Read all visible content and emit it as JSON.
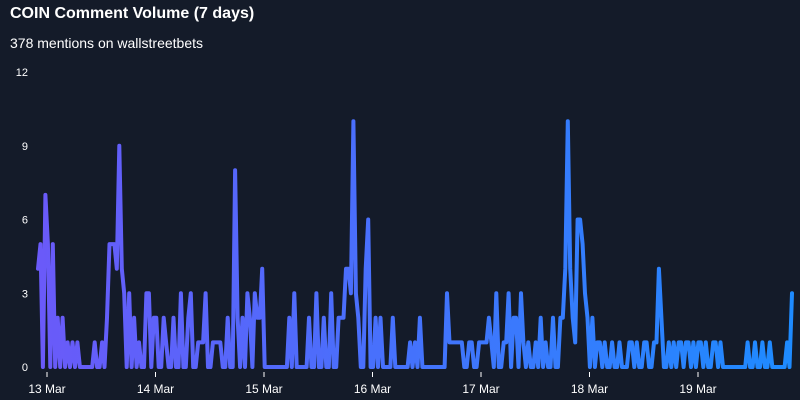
{
  "title": "COIN Comment Volume (7 days)",
  "subtitle": "378 mentions on wallstreetbets",
  "chart_data": {
    "type": "line",
    "title": "COIN Comment Volume (7 days)",
    "subtitle": "378 mentions on wallstreetbets",
    "xlabel": "",
    "ylabel": "",
    "ylim": [
      0,
      12
    ],
    "yticks": [
      "0",
      "3",
      "6",
      "9",
      "12"
    ],
    "grid": false,
    "x_start": "13 Mar",
    "x_end": "19 Mar",
    "xtick_labels": [
      "13 Mar",
      "14 Mar",
      "15 Mar",
      "16 Mar",
      "17 Mar",
      "18 Mar",
      "19 Mar"
    ],
    "line_color_start": "#6a5af9",
    "line_color_end": "#1e8bff",
    "series": [
      {
        "values": [
          4,
          5,
          0,
          7,
          5,
          0,
          5,
          0,
          2,
          0,
          2,
          0,
          1,
          0,
          1,
          0,
          1,
          0,
          0,
          0,
          0,
          0,
          0,
          1,
          0,
          0,
          1,
          0,
          2,
          5,
          5,
          5,
          4,
          9,
          4,
          3,
          0,
          3,
          0,
          2,
          0,
          1,
          0,
          0,
          3,
          3,
          0,
          2,
          2,
          0,
          0,
          2,
          1,
          0,
          0,
          2,
          0,
          0,
          3,
          0,
          0,
          2,
          3,
          0,
          0,
          1,
          1,
          1,
          3,
          0,
          0,
          1,
          1,
          1,
          1,
          0,
          0,
          2,
          0,
          0,
          8,
          2,
          0,
          2,
          0,
          3,
          2,
          0,
          3,
          2,
          2,
          4,
          0,
          0,
          0,
          0,
          0,
          0,
          0,
          0,
          0,
          0,
          2,
          0,
          3,
          0,
          0,
          0,
          0,
          0,
          2,
          0,
          0,
          3,
          0,
          0,
          2,
          0,
          0,
          3,
          0,
          0,
          2,
          2,
          2,
          4,
          4,
          3,
          10,
          3,
          2,
          0,
          0,
          4,
          6,
          0,
          0,
          2,
          0,
          2,
          0,
          0,
          0,
          0,
          2,
          0,
          0,
          0,
          0,
          0,
          0,
          1,
          0,
          1,
          0,
          2,
          0,
          0,
          0,
          0,
          0,
          0,
          0,
          0,
          0,
          0,
          3,
          1,
          1,
          1,
          1,
          1,
          1,
          0,
          0,
          1,
          1,
          0,
          0,
          1,
          1,
          1,
          1,
          2,
          1,
          0,
          3,
          0,
          0,
          1,
          1,
          3,
          0,
          2,
          2,
          0,
          3,
          1,
          0,
          1,
          0,
          0,
          1,
          0,
          2,
          0,
          1,
          0,
          0,
          2,
          0,
          0,
          2,
          2,
          4,
          10,
          4,
          2,
          1,
          6,
          6,
          5,
          3,
          2,
          0,
          2,
          0,
          1,
          1,
          0,
          1,
          0,
          0,
          1,
          0,
          0,
          1,
          0,
          0,
          0,
          1,
          1,
          0,
          1,
          0,
          0,
          1,
          1,
          0,
          0,
          1,
          1,
          4,
          2,
          0,
          0,
          1,
          0,
          1,
          0,
          1,
          1,
          0,
          1,
          1,
          0,
          1,
          0,
          1,
          1,
          0,
          1,
          0,
          0,
          1,
          1,
          0,
          1,
          0,
          0,
          0,
          0,
          0,
          0,
          0,
          0,
          0,
          0,
          1,
          0,
          0,
          1,
          0,
          0,
          1,
          0,
          0,
          1,
          0,
          0,
          0,
          0,
          0,
          0,
          1,
          0,
          3
        ]
      }
    ]
  }
}
